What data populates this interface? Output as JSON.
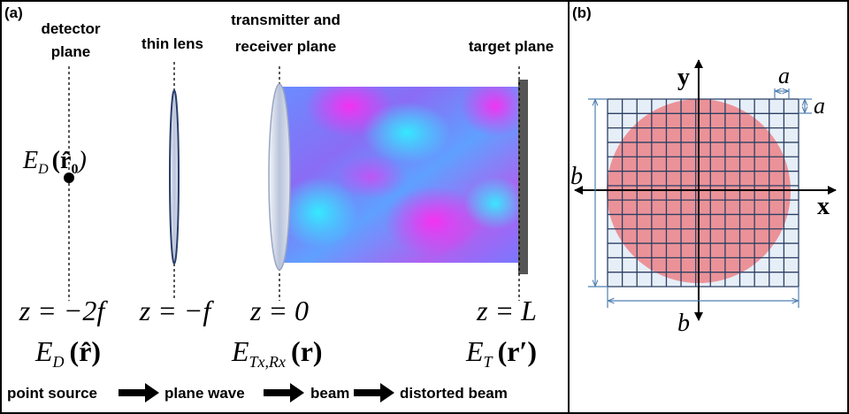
{
  "panel_a": {
    "label": "(a)",
    "planes": [
      {
        "title_lines": [
          "detector",
          "plane"
        ],
        "z": "z = −2f",
        "field": {
          "base": "E",
          "sub": "D",
          "arg": "(r̂)"
        }
      },
      {
        "title_lines": [
          "thin lens"
        ],
        "z": "z = −f"
      },
      {
        "title_lines": [
          "transmitter and",
          "receiver plane"
        ],
        "z": "z = 0",
        "field": {
          "base": "E",
          "sub": "Tx,Rx",
          "arg": "(r)"
        }
      },
      {
        "title_lines": [
          "target plane"
        ],
        "z": "z = L",
        "field": {
          "base": "E",
          "sub": "T",
          "arg": "(r′)"
        }
      }
    ],
    "source_field": {
      "base": "E",
      "sub": "D",
      "arg": "(r̂",
      "arg_sub": "0",
      "close": ")"
    },
    "flow": [
      "point source",
      "plane wave",
      "beam",
      "distorted beam"
    ]
  },
  "panel_b": {
    "label": "(b)",
    "axis_x": "x",
    "axis_y": "y",
    "a_top": "a",
    "a_right": "a",
    "b_left": "b",
    "b_bottom": "b"
  }
}
